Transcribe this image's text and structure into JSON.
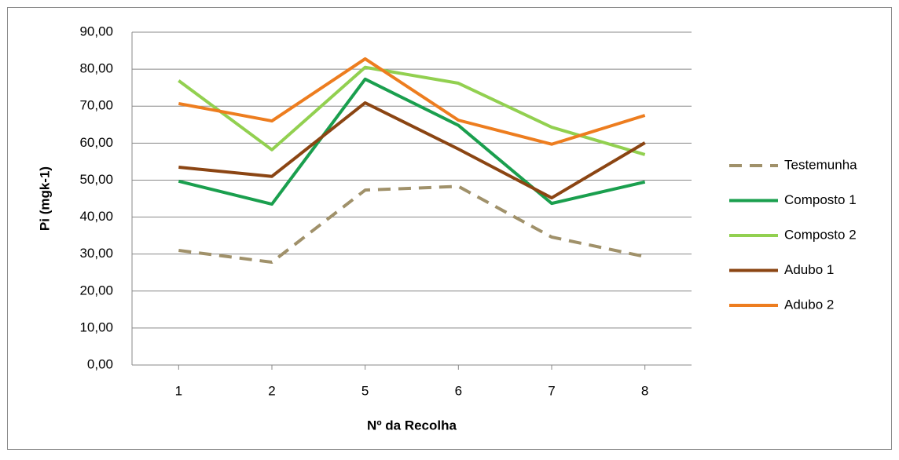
{
  "chart_data": {
    "type": "line",
    "x_label": "Nº da Recolha",
    "y_label": "Pi  (mgk-1)",
    "categories": [
      "1",
      "2",
      "5",
      "6",
      "7",
      "8"
    ],
    "series": [
      {
        "name": "Testemunha",
        "color": "#a0916a",
        "dashed": true,
        "values": [
          31,
          27.8,
          47.3,
          48.3,
          34.6,
          29.3
        ]
      },
      {
        "name": "Composto 1",
        "color": "#1a9f4e",
        "dashed": false,
        "values": [
          49.7,
          43.5,
          77.3,
          64.8,
          43.7,
          49.5
        ]
      },
      {
        "name": "Composto 2",
        "color": "#92d050",
        "dashed": false,
        "values": [
          76.9,
          58.2,
          80.5,
          76.2,
          64.3,
          56.9
        ]
      },
      {
        "name": "Adubo 1",
        "color": "#8b4513",
        "dashed": false,
        "values": [
          53.5,
          51,
          70.9,
          58.4,
          45.2,
          60.1
        ]
      },
      {
        "name": "Adubo 2",
        "color": "#ed7d1f",
        "dashed": false,
        "values": [
          70.7,
          66,
          82.8,
          66.2,
          59.7,
          67.5
        ]
      }
    ],
    "ylim": [
      0,
      90
    ],
    "yticks": [
      {
        "value": 0,
        "label": "0,00"
      },
      {
        "value": 10,
        "label": "10,00"
      },
      {
        "value": 20,
        "label": "20,00"
      },
      {
        "value": 30,
        "label": "30,00"
      },
      {
        "value": 40,
        "label": "40,00"
      },
      {
        "value": 50,
        "label": "50,00"
      },
      {
        "value": 60,
        "label": "60,00"
      },
      {
        "value": 70,
        "label": "70,00"
      },
      {
        "value": 80,
        "label": "80,00"
      },
      {
        "value": 90,
        "label": "90,00"
      }
    ],
    "grid": true,
    "legend_position": "right"
  }
}
